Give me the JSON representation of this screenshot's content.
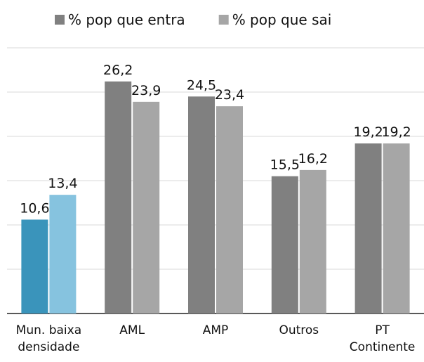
{
  "chart_data": {
    "type": "bar",
    "categories": [
      "Mun. baixa densidade",
      "AML",
      "AMP",
      "Outros",
      "PT Continente"
    ],
    "series": [
      {
        "name": "% pop que entra",
        "color": "#808080",
        "colors": [
          "#3a94bb",
          "#808080",
          "#808080",
          "#808080",
          "#808080"
        ],
        "values": [
          10.6,
          26.2,
          24.5,
          15.5,
          19.2
        ],
        "value_labels": [
          "10,6",
          "26,2",
          "24,5",
          "15,5",
          "19,2"
        ]
      },
      {
        "name": "% pop que sai",
        "color": "#a6a6a6",
        "colors": [
          "#86c3df",
          "#a6a6a6",
          "#a6a6a6",
          "#a6a6a6",
          "#a6a6a6"
        ],
        "values": [
          13.4,
          23.9,
          23.4,
          16.2,
          19.2
        ],
        "value_labels": [
          "13,4",
          "23,9",
          "23,4",
          "16,2",
          "19,2"
        ]
      }
    ],
    "ylim": [
      0,
      30
    ],
    "yticks": [
      0,
      5,
      10,
      15,
      20,
      25,
      30
    ],
    "grid": true,
    "legend": "top"
  }
}
